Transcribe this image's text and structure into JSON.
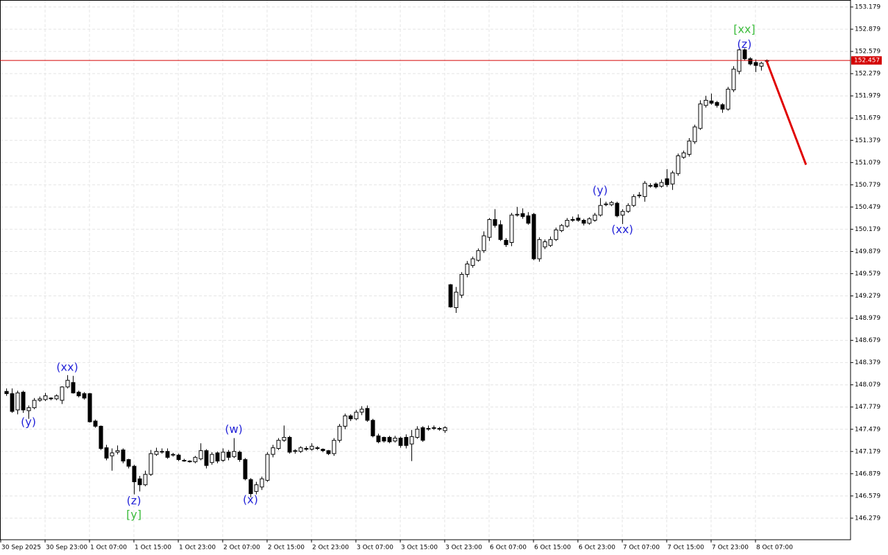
{
  "chart_data": {
    "type": "candlestick",
    "x": [
      1,
      2,
      3,
      4,
      5,
      6,
      7,
      8,
      9,
      10,
      11,
      12,
      13,
      14,
      15,
      16,
      17,
      18,
      19,
      20,
      21,
      22,
      23,
      24,
      25,
      26,
      27,
      28,
      29,
      30,
      31,
      32,
      33,
      34,
      35,
      36,
      37,
      38,
      39,
      40,
      41,
      42,
      43,
      44,
      45,
      46,
      47,
      48,
      49,
      50,
      51,
      52,
      53,
      54,
      55,
      56,
      57,
      58,
      59,
      60,
      61,
      62,
      63,
      64,
      65,
      66,
      67,
      68,
      69,
      70,
      71,
      72,
      73,
      74,
      75,
      76,
      77,
      78,
      79,
      80,
      81,
      82,
      83,
      84,
      85,
      86,
      87,
      88,
      89,
      90,
      91,
      92,
      93,
      94,
      95,
      96,
      97,
      98,
      99,
      100,
      101,
      102,
      103,
      104,
      105,
      106,
      107,
      108,
      109,
      110,
      111,
      112,
      113,
      114,
      115,
      116,
      117,
      118,
      119,
      120,
      121,
      122,
      123,
      124,
      125,
      126,
      127,
      128,
      129,
      130,
      131,
      132,
      133,
      134,
      135,
      136,
      137,
      138
    ],
    "open": [
      147.99,
      147.96,
      147.74,
      147.98,
      147.73,
      147.77,
      147.87,
      147.88,
      147.9,
      147.89,
      147.87,
      148.05,
      148.11,
      147.98,
      147.96,
      147.96,
      147.59,
      147.52,
      147.23,
      147.12,
      147.17,
      147.2,
      147.07,
      146.98,
      146.81,
      146.73,
      146.87,
      147.14,
      147.17,
      147.18,
      147.13,
      147.13,
      147.06,
      147.05,
      147.04,
      147.08,
      147.19,
      147.03,
      147.16,
      147.06,
      147.17,
      147.11,
      147.17,
      147.07,
      146.8,
      146.64,
      146.7,
      146.79,
      147.14,
      147.22,
      147.33,
      147.37,
      147.18,
      147.18,
      147.22,
      147.21,
      147.23,
      147.21,
      147.19,
      147.15,
      147.33,
      147.52,
      147.66,
      147.62,
      147.71,
      147.76,
      147.6,
      147.39,
      147.37,
      147.37,
      147.32,
      147.36,
      147.37,
      147.28,
      147.37,
      147.5,
      147.48,
      147.49,
      147.49,
      147.46,
      149.43,
      149.12,
      149.29,
      149.57,
      149.69,
      149.76,
      149.89,
      150.07,
      150.31,
      150.24,
      150.03,
      150.0,
      150.37,
      150.39,
      150.36,
      150.38,
      149.78,
      149.94,
      149.96,
      150.04,
      150.16,
      150.22,
      150.31,
      150.33,
      150.3,
      150.26,
      150.3,
      150.37,
      150.51,
      150.51,
      150.53,
      150.37,
      150.42,
      150.5,
      150.63,
      150.62,
      150.76,
      150.79,
      150.76,
      150.86,
      150.79,
      150.93,
      151.15,
      151.19,
      151.36,
      151.54,
      151.85,
      151.91,
      151.89,
      151.86,
      151.8,
      152.06,
      152.31,
      152.6,
      152.48,
      152.43,
      152.38,
      152.45
    ],
    "high": [
      148.03,
      148.03,
      148.0,
      148.0,
      147.8,
      147.9,
      147.92,
      147.97,
      147.91,
      147.95,
      148.06,
      148.21,
      148.2,
      148.0,
      147.98,
      147.97,
      147.61,
      147.53,
      147.27,
      147.22,
      147.26,
      147.22,
      147.08,
      147.0,
      146.85,
      146.92,
      147.2,
      147.23,
      147.22,
      147.22,
      147.16,
      147.15,
      147.08,
      147.06,
      147.12,
      147.29,
      147.21,
      147.17,
      147.18,
      147.22,
      147.2,
      147.36,
      147.19,
      147.09,
      146.82,
      146.77,
      146.84,
      147.17,
      147.27,
      147.36,
      147.53,
      147.39,
      147.21,
      147.25,
      147.25,
      147.29,
      147.25,
      147.22,
      147.2,
      147.36,
      147.55,
      147.69,
      147.68,
      147.74,
      147.79,
      147.8,
      147.62,
      147.42,
      147.38,
      147.39,
      147.39,
      147.38,
      147.41,
      147.47,
      147.52,
      147.52,
      147.53,
      147.53,
      147.51,
      147.52,
      149.44,
      149.4,
      149.6,
      149.75,
      149.81,
      149.92,
      150.15,
      150.33,
      150.45,
      150.3,
      150.06,
      150.4,
      150.48,
      150.46,
      150.41,
      150.4,
      150.07,
      150.04,
      150.08,
      150.2,
      150.25,
      150.33,
      150.35,
      150.38,
      150.32,
      150.34,
      150.4,
      150.6,
      150.55,
      150.56,
      150.55,
      150.45,
      150.53,
      150.65,
      150.68,
      150.83,
      150.8,
      150.81,
      150.85,
      150.99,
      150.97,
      151.2,
      151.24,
      151.41,
      151.59,
      151.92,
      151.98,
      152.01,
      151.91,
      151.88,
      152.1,
      152.38,
      152.61,
      152.62,
      152.5,
      152.47,
      152.44,
      152.47
    ],
    "low": [
      147.93,
      147.7,
      147.68,
      147.7,
      147.62,
      147.75,
      147.85,
      147.86,
      147.87,
      147.87,
      147.82,
      148.03,
      147.96,
      147.91,
      147.88,
      147.57,
      147.5,
      147.2,
      147.06,
      146.92,
      147.14,
      147.02,
      146.95,
      146.6,
      146.64,
      146.71,
      146.85,
      147.12,
      147.15,
      147.08,
      147.11,
      147.05,
      147.04,
      147.03,
      147.02,
      147.06,
      146.95,
      147.0,
      147.02,
      147.04,
      147.06,
      147.09,
      147.04,
      146.79,
      146.56,
      146.6,
      146.66,
      146.77,
      147.1,
      147.2,
      147.31,
      147.15,
      147.15,
      147.16,
      147.19,
      147.19,
      147.2,
      147.17,
      147.13,
      147.12,
      147.3,
      147.48,
      147.59,
      147.6,
      147.67,
      147.58,
      147.37,
      147.29,
      147.3,
      147.29,
      147.3,
      147.23,
      147.22,
      147.05,
      147.35,
      147.31,
      147.46,
      147.47,
      147.46,
      147.43,
      149.12,
      149.05,
      149.25,
      149.53,
      149.66,
      149.74,
      149.86,
      150.02,
      150.2,
      150.02,
      149.94,
      149.95,
      150.35,
      150.32,
      150.24,
      149.76,
      149.74,
      149.91,
      149.94,
      150.02,
      150.14,
      150.2,
      150.28,
      150.28,
      150.23,
      150.24,
      150.28,
      150.35,
      150.49,
      150.49,
      150.34,
      150.25,
      150.4,
      150.48,
      150.6,
      150.55,
      150.74,
      150.73,
      150.74,
      150.75,
      150.71,
      150.9,
      151.13,
      151.16,
      151.33,
      151.52,
      151.82,
      151.86,
      151.82,
      151.75,
      151.78,
      152.03,
      152.27,
      152.46,
      152.39,
      152.3,
      152.32,
      152.43
    ],
    "close": [
      147.96,
      147.72,
      147.97,
      147.74,
      147.77,
      147.87,
      147.89,
      147.93,
      147.89,
      147.93,
      148.05,
      148.14,
      147.97,
      147.93,
      147.9,
      147.58,
      147.52,
      147.22,
      147.09,
      147.16,
      147.19,
      147.05,
      146.98,
      146.77,
      146.73,
      146.87,
      147.15,
      147.18,
      147.18,
      147.1,
      147.14,
      147.07,
      147.05,
      147.04,
      147.1,
      147.19,
      146.99,
      147.14,
      147.05,
      147.17,
      147.1,
      147.18,
      147.07,
      146.81,
      146.61,
      146.73,
      146.81,
      147.14,
      147.23,
      147.33,
      147.37,
      147.17,
      147.19,
      147.23,
      147.21,
      147.25,
      147.22,
      147.19,
      147.15,
      147.33,
      147.52,
      147.66,
      147.62,
      147.71,
      147.75,
      147.6,
      147.39,
      147.31,
      147.32,
      147.31,
      147.36,
      147.26,
      147.26,
      147.38,
      147.48,
      147.33,
      147.49,
      147.5,
      147.48,
      147.5,
      149.13,
      149.33,
      149.57,
      149.71,
      149.78,
      149.89,
      150.09,
      150.31,
      150.23,
      150.04,
      149.97,
      150.37,
      150.38,
      150.35,
      150.26,
      149.78,
      150.04,
      150.01,
      150.04,
      150.17,
      150.23,
      150.3,
      150.3,
      150.3,
      150.26,
      150.32,
      150.37,
      150.5,
      150.52,
      150.54,
      150.36,
      150.42,
      150.5,
      150.62,
      150.64,
      150.8,
      150.77,
      150.75,
      150.81,
      150.78,
      150.94,
      151.17,
      151.21,
      151.37,
      151.56,
      151.87,
      151.92,
      151.88,
      151.85,
      151.8,
      152.07,
      152.34,
      152.6,
      152.48,
      152.41,
      152.39,
      152.42,
      152.457
    ],
    "up_color": "#ffffff",
    "down_color": "#000000",
    "xlim": [
      -0.125,
      153.125
    ],
    "ylim": [
      145.988,
      153.273
    ],
    "xticks": [
      {
        "value": 0,
        "label": "30 Sep 2025"
      },
      {
        "value": 8,
        "label": "30 Sep 23:00"
      },
      {
        "value": 16,
        "label": "1 Oct 07:00"
      },
      {
        "value": 24,
        "label": "1 Oct 15:00"
      },
      {
        "value": 32,
        "label": "1 Oct 23:00"
      },
      {
        "value": 40,
        "label": "2 Oct 07:00"
      },
      {
        "value": 48,
        "label": "2 Oct 15:00"
      },
      {
        "value": 56,
        "label": "2 Oct 23:00"
      },
      {
        "value": 64,
        "label": "3 Oct 07:00"
      },
      {
        "value": 72,
        "label": "3 Oct 15:00"
      },
      {
        "value": 80,
        "label": "3 Oct 23:00"
      },
      {
        "value": 88,
        "label": "6 Oct 07:00"
      },
      {
        "value": 96,
        "label": "6 Oct 15:00"
      },
      {
        "value": 104,
        "label": "6 Oct 23:00"
      },
      {
        "value": 112,
        "label": "7 Oct 07:00"
      },
      {
        "value": 120,
        "label": "7 Oct 15:00"
      },
      {
        "value": 128,
        "label": "7 Oct 23:00"
      },
      {
        "value": 136,
        "label": "8 Oct 07:00"
      }
    ],
    "yticks": [
      146.279,
      146.579,
      146.879,
      147.179,
      147.479,
      147.779,
      148.079,
      148.379,
      148.679,
      148.979,
      149.279,
      149.579,
      149.879,
      150.179,
      150.479,
      150.779,
      151.079,
      151.379,
      151.679,
      151.979,
      152.279,
      152.579,
      152.879,
      153.179
    ],
    "grid": true,
    "price_line": {
      "value": 152.457,
      "color": "#d40000"
    },
    "forecast": {
      "x": [
        138,
        145.1
      ],
      "values": [
        152.45,
        151.05
      ],
      "color": "#e00000"
    },
    "annotations": [
      {
        "text": "(y)",
        "x": 5,
        "y": 147.57,
        "color": "#2323d8"
      },
      {
        "text": "(xx)",
        "x": 12,
        "y": 148.31,
        "color": "#2323d8"
      },
      {
        "text": "(z)",
        "x": 24,
        "y": 146.51,
        "color": "#2323d8"
      },
      {
        "text": "[y]",
        "x": 24,
        "y": 146.32,
        "color": "#3cbc3c"
      },
      {
        "text": "(w)",
        "x": 42,
        "y": 147.47,
        "color": "#2323d8"
      },
      {
        "text": "(x)",
        "x": 45,
        "y": 146.52,
        "color": "#2323d8"
      },
      {
        "text": "(y)",
        "x": 108,
        "y": 150.7,
        "color": "#2323d8"
      },
      {
        "text": "(xx)",
        "x": 112,
        "y": 150.17,
        "color": "#2323d8"
      },
      {
        "text": "(z)",
        "x": 134,
        "y": 152.67,
        "color": "#2323d8"
      },
      {
        "text": "[xx]",
        "x": 134,
        "y": 152.87,
        "color": "#3cbc3c"
      }
    ]
  }
}
